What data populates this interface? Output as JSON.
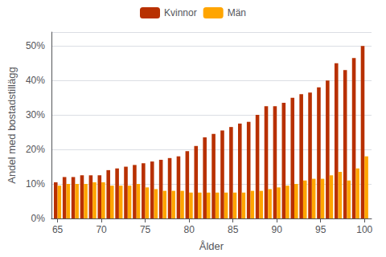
{
  "chart_data": {
    "type": "bar",
    "xlabel": "Ålder",
    "ylabel": "Andel med bostadstillägg",
    "x": [
      65,
      66,
      67,
      68,
      69,
      70,
      71,
      72,
      73,
      74,
      75,
      76,
      77,
      78,
      79,
      80,
      81,
      82,
      83,
      84,
      85,
      86,
      87,
      88,
      89,
      90,
      91,
      92,
      93,
      94,
      95,
      96,
      97,
      98,
      99,
      100
    ],
    "series": [
      {
        "name": "Kvinnor",
        "color": "#b83000",
        "values": [
          10.5,
          12.0,
          12.0,
          12.5,
          12.5,
          12.5,
          14.0,
          14.5,
          15.0,
          15.5,
          16.0,
          16.5,
          17.0,
          17.5,
          18.0,
          19.5,
          21.0,
          23.5,
          24.5,
          25.5,
          26.5,
          27.5,
          28.0,
          30.0,
          32.5,
          32.5,
          33.5,
          35.0,
          36.0,
          36.5,
          38.0,
          40.0,
          45.0,
          43.0,
          46.5,
          50.0
        ]
      },
      {
        "name": "Män",
        "color": "#ffa500",
        "values": [
          9.5,
          10.0,
          10.0,
          10.0,
          10.5,
          10.5,
          9.5,
          9.5,
          9.5,
          10.0,
          9.0,
          8.5,
          8.0,
          8.0,
          8.0,
          7.5,
          7.5,
          7.5,
          7.5,
          7.5,
          7.5,
          7.5,
          8.0,
          8.0,
          8.5,
          9.0,
          9.5,
          10.0,
          11.0,
          11.5,
          11.5,
          12.5,
          13.5,
          11.0,
          14.5,
          18.0
        ]
      }
    ],
    "xlim": [
      64.3,
      100.8
    ],
    "xticks": [
      65,
      70,
      75,
      80,
      85,
      90,
      95,
      100
    ],
    "ylim": [
      0,
      54
    ],
    "yticks": [
      {
        "value": 0,
        "label": "0%"
      },
      {
        "value": 10,
        "label": "10%"
      },
      {
        "value": 20,
        "label": "20%"
      },
      {
        "value": 30,
        "label": "30%"
      },
      {
        "value": 40,
        "label": "40%"
      },
      {
        "value": 50,
        "label": "50%"
      }
    ],
    "grid": true,
    "legend": "top"
  }
}
